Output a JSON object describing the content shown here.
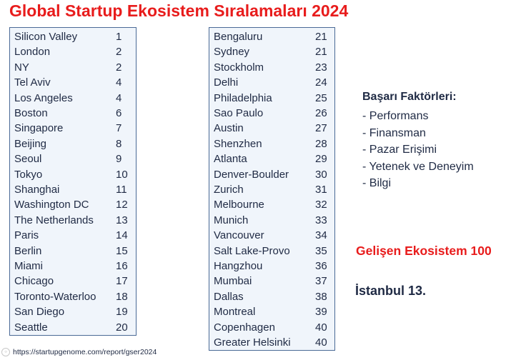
{
  "title": "Global Startup Ekosistem Sıralamaları 2024",
  "left_list": [
    {
      "name": "Silicon Valley",
      "rank": "1"
    },
    {
      "name": "London",
      "rank": "2"
    },
    {
      "name": "NY",
      "rank": "2"
    },
    {
      "name": "Tel Aviv",
      "rank": "4"
    },
    {
      "name": "Los Angeles",
      "rank": "4"
    },
    {
      "name": "Boston",
      "rank": "6"
    },
    {
      "name": "Singapore",
      "rank": "7"
    },
    {
      "name": "Beijing",
      "rank": "8"
    },
    {
      "name": "Seoul",
      "rank": "9"
    },
    {
      "name": "Tokyo",
      "rank": "10"
    },
    {
      "name": "Shanghai",
      "rank": "11"
    },
    {
      "name": "Washington DC",
      "rank": "12"
    },
    {
      "name": "The Netherlands",
      "rank": "13"
    },
    {
      "name": "Paris",
      "rank": "14"
    },
    {
      "name": "Berlin",
      "rank": "15"
    },
    {
      "name": "Miami",
      "rank": "16"
    },
    {
      "name": "Chicago",
      "rank": "17"
    },
    {
      "name": "Toronto-Waterloo",
      "rank": "18"
    },
    {
      "name": "San Diego",
      "rank": "19"
    },
    {
      "name": "Seattle",
      "rank": "20"
    }
  ],
  "right_list": [
    {
      "name": "Bengaluru",
      "rank": "21"
    },
    {
      "name": "Sydney",
      "rank": "21"
    },
    {
      "name": "Stockholm",
      "rank": "23"
    },
    {
      "name": "Delhi",
      "rank": "24"
    },
    {
      "name": "Philadelphia",
      "rank": "25"
    },
    {
      "name": "Sao Paulo",
      "rank": "26"
    },
    {
      "name": "Austin",
      "rank": "27"
    },
    {
      "name": "Shenzhen",
      "rank": "28"
    },
    {
      "name": "Atlanta",
      "rank": "29"
    },
    {
      "name": "Denver-Boulder",
      "rank": "30"
    },
    {
      "name": "Zurich",
      "rank": "31"
    },
    {
      "name": "Melbourne",
      "rank": "32"
    },
    {
      "name": "Munich",
      "rank": "33"
    },
    {
      "name": "Vancouver",
      "rank": "34"
    },
    {
      "name": "Salt Lake-Provo",
      "rank": "35"
    },
    {
      "name": "Hangzhou",
      "rank": "36"
    },
    {
      "name": "Mumbai",
      "rank": "37"
    },
    {
      "name": "Dallas",
      "rank": "38"
    },
    {
      "name": "Montreal",
      "rank": "39"
    },
    {
      "name": "Copenhagen",
      "rank": "40"
    },
    {
      "name": "Greater Helsinki",
      "rank": "40"
    }
  ],
  "factors": {
    "heading": "Başarı Faktörleri:",
    "items": [
      "- Performans",
      "- Finansman",
      "- Pazar Erişimi",
      "- Yetenek ve Deneyim",
      "- Bilgi"
    ]
  },
  "emerging": "Gelişen Ekosistem 100",
  "istanbul": "İstanbul 13.",
  "footer": {
    "link": "https://startupgenome.com/report/gser2024",
    "icon": "link-icon"
  },
  "colors": {
    "title": "#e81c1c",
    "box_fill": "#f0f5fb",
    "box_border": "#4a6a96",
    "text": "#1f2a44"
  }
}
